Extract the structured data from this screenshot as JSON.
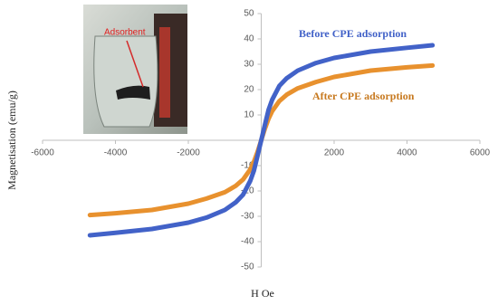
{
  "chart_data": {
    "type": "line",
    "x_label": "H Oe",
    "y_label": "Magnetisation (emu/g)",
    "annotation": "Adsorbent",
    "x": [
      -4700,
      -4000,
      -3000,
      -2000,
      -1500,
      -1000,
      -700,
      -500,
      -300,
      -200,
      -100,
      0,
      100,
      200,
      300,
      500,
      700,
      1000,
      1500,
      2000,
      3000,
      4000,
      4700
    ],
    "series": [
      {
        "name": "Before CPE adsorption",
        "color": "#4262c8",
        "label_color": "#4262c8",
        "values": [
          -37.5,
          -36.5,
          -35,
          -32.5,
          -30.5,
          -27.5,
          -24.5,
          -21.5,
          -16,
          -12,
          -6,
          0,
          6,
          12,
          16,
          21.5,
          24.5,
          27.5,
          30.5,
          32.5,
          35,
          36.5,
          37.5
        ]
      },
      {
        "name": "After CPE adsorption",
        "color": "#e8912e",
        "label_color": "#c7791f",
        "values": [
          -29.5,
          -28.8,
          -27.5,
          -25,
          -23,
          -20.5,
          -18,
          -15.5,
          -11.5,
          -8.5,
          -4.5,
          0,
          4.5,
          8.5,
          11.5,
          15.5,
          18,
          20.5,
          23,
          25,
          27.5,
          28.8,
          29.5
        ]
      }
    ],
    "xlim": [
      -6000,
      6000
    ],
    "ylim": [
      -50,
      50
    ],
    "xticks": [
      -6000,
      -4000,
      -2000,
      2000,
      4000,
      6000
    ],
    "yticks": [
      -50,
      -40,
      -30,
      -20,
      -10,
      10,
      20,
      30,
      40,
      50
    ]
  }
}
